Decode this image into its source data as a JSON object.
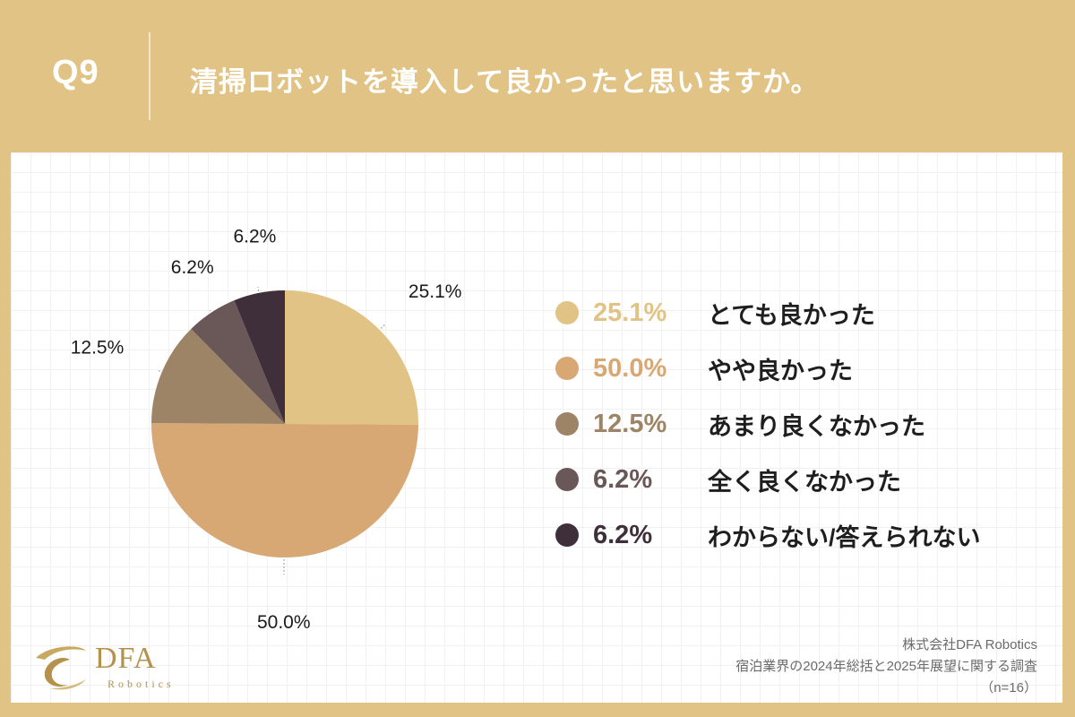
{
  "header": {
    "q_label": "Q9",
    "question": "清掃ロボットを導入して良かったと思いますか。"
  },
  "chart_data": {
    "type": "pie",
    "categories": [
      "とても良かった",
      "やや良かった",
      "あまり良くなかった",
      "全く良くなかった",
      "わからない/答えられない"
    ],
    "values": [
      25.1,
      50.0,
      12.5,
      6.2,
      6.2
    ],
    "labels": [
      "25.1%",
      "50.0%",
      "12.5%",
      "6.2%",
      "6.2%"
    ],
    "colors": [
      "#e0c385",
      "#d7a874",
      "#9d8466",
      "#6a5858",
      "#3f2f3b"
    ],
    "legend_position": "right"
  },
  "legend": {
    "items": [
      {
        "pct": "25.1%",
        "label": "とても良かった",
        "color": "#e0c385"
      },
      {
        "pct": "50.0%",
        "label": "やや良かった",
        "color": "#d7a874"
      },
      {
        "pct": "12.5%",
        "label": "あまり良くなかった",
        "color": "#9d8466"
      },
      {
        "pct": "6.2%",
        "label": "全く良くなかった",
        "color": "#6a5858"
      },
      {
        "pct": "6.2%",
        "label": "わからない/答えられない",
        "color": "#3f2f3b"
      }
    ]
  },
  "logo": {
    "name": "DFA",
    "sub": "Robotics"
  },
  "footer": {
    "company": "株式会社DFA Robotics",
    "survey": "宿泊業界の2024年総括と2025年展望に関する調査",
    "n": "（n=16）"
  },
  "colors": {
    "background": "#e0c385",
    "panel": "#ffffff",
    "logo": "#b4914c"
  }
}
